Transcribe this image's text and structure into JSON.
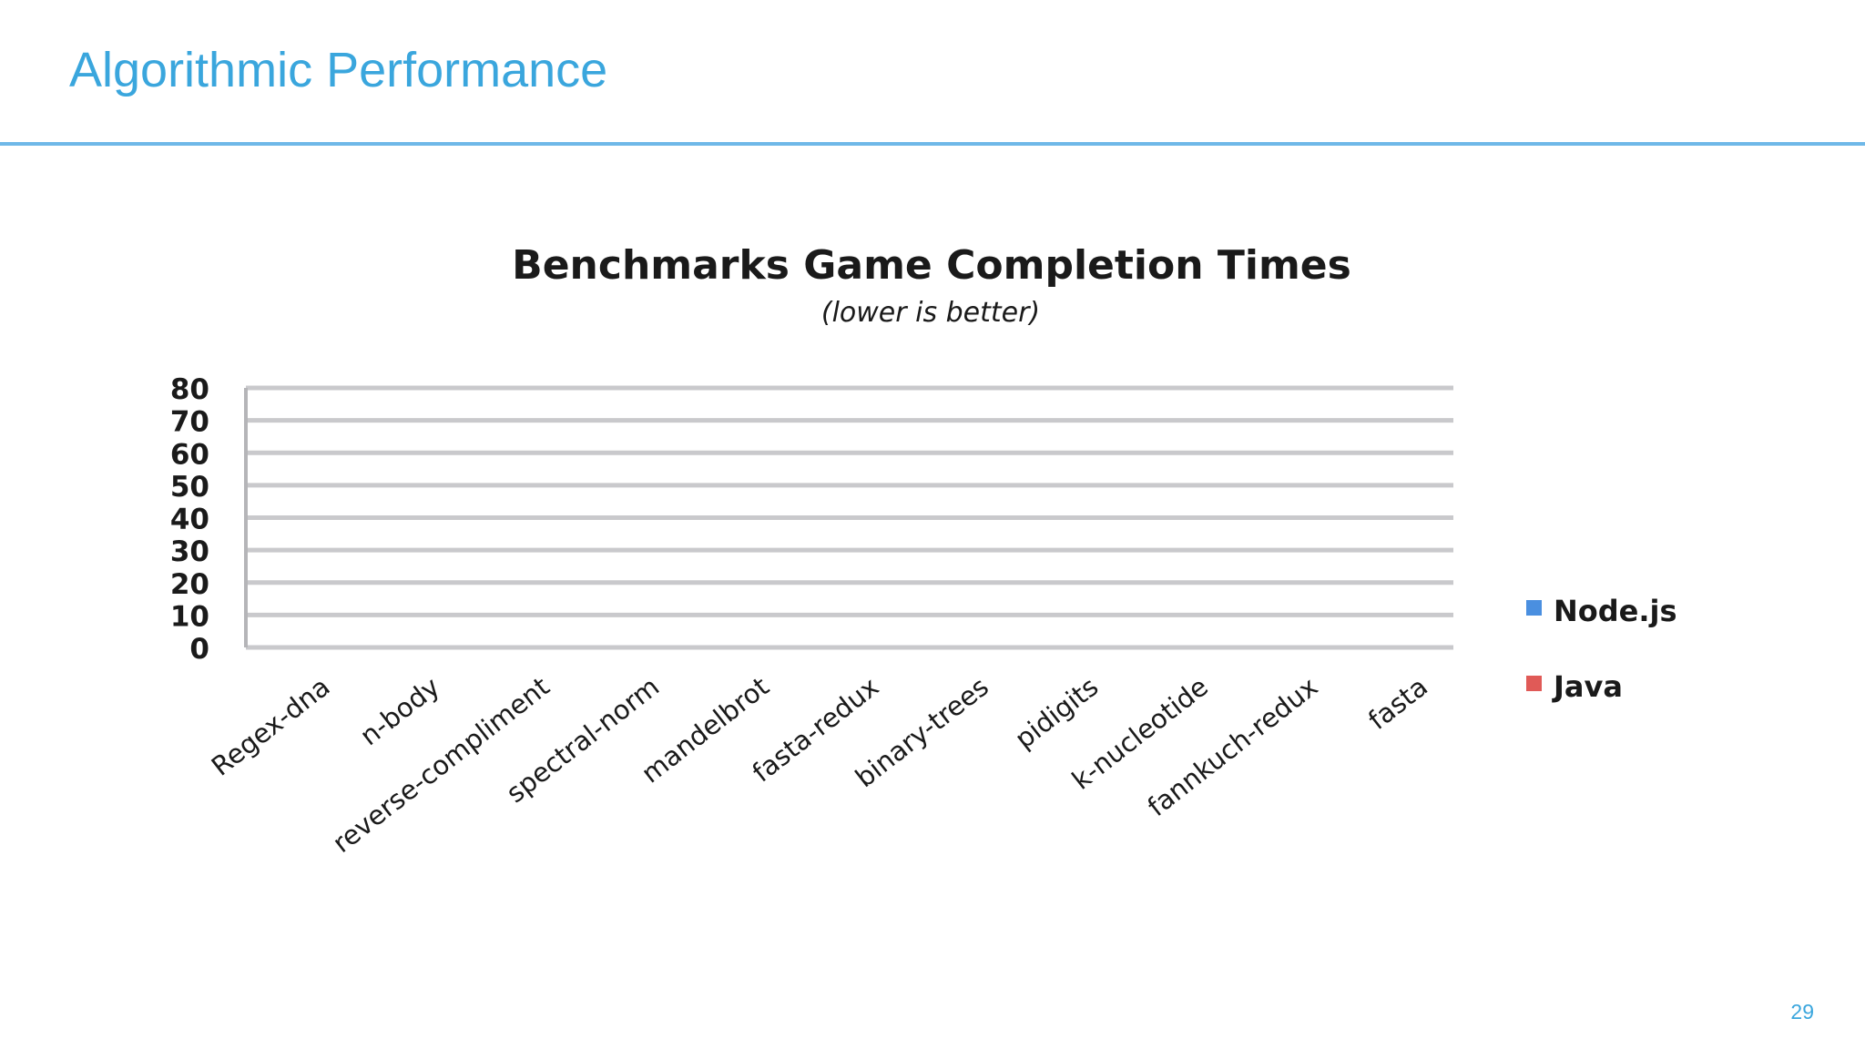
{
  "slide": {
    "title": "Algorithmic Performance",
    "page_number": "29",
    "accent_color": "#3aa6dd",
    "rule_color": "#6fb8e8"
  },
  "chart_data": {
    "type": "bar",
    "title": "Benchmarks Game Completion Times",
    "subtitle": "(lower is better)",
    "xlabel": "",
    "ylabel": "",
    "ylim": [
      0,
      80
    ],
    "yticks": [
      0,
      10,
      20,
      30,
      40,
      50,
      60,
      70,
      80
    ],
    "grid": true,
    "legend_position": "right",
    "categories": [
      "Regex-dna",
      "n-body",
      "reverse-compliment",
      "spectral-norm",
      "mandelbrot",
      "fasta-redux",
      "binary-trees",
      "pidigits",
      "k-nucleotide",
      "fannkuch-redux",
      "fasta"
    ],
    "series": [
      {
        "name": "Node.js",
        "color": "#4a8fe0",
        "values": [
          null,
          null,
          null,
          null,
          null,
          null,
          null,
          null,
          null,
          null,
          null
        ]
      },
      {
        "name": "Java",
        "color": "#e05a57",
        "values": [
          null,
          null,
          null,
          null,
          null,
          null,
          null,
          null,
          null,
          null,
          null
        ]
      }
    ]
  }
}
